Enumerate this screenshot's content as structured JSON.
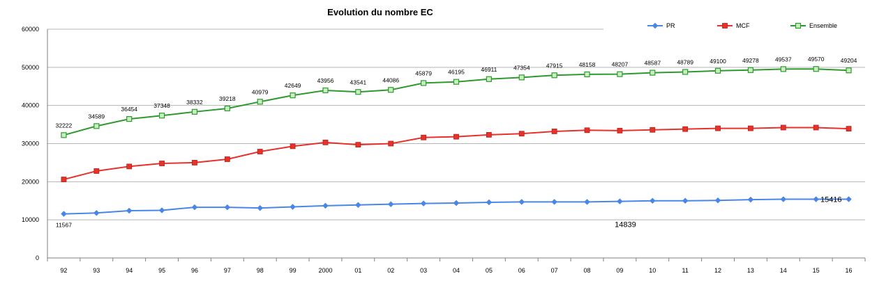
{
  "chart_data": {
    "type": "line",
    "title": "Evolution du nombre EC",
    "xlabel": "",
    "ylabel": "",
    "categories": [
      "92",
      "93",
      "94",
      "95",
      "96",
      "97",
      "98",
      "99",
      "2000",
      "01",
      "02",
      "03",
      "04",
      "05",
      "06",
      "07",
      "08",
      "09",
      "10",
      "11",
      "12",
      "13",
      "14",
      "15",
      "16"
    ],
    "ylim": [
      0,
      60000
    ],
    "yticks": [
      "0",
      "10000",
      "20000",
      "30000",
      "40000",
      "50000",
      "60000"
    ],
    "grid": true,
    "legend": "top-right",
    "series": [
      {
        "name": "PR",
        "color": "#4a86e8",
        "marker": "diamond",
        "values": [
          11567,
          11800,
          12400,
          12500,
          13300,
          13300,
          13100,
          13400,
          13700,
          13900,
          14100,
          14300,
          14400,
          14600,
          14700,
          14700,
          14700,
          14839,
          15000,
          15000,
          15100,
          15300,
          15400,
          15400,
          15416
        ]
      },
      {
        "name": "MCF",
        "color": "#e8312a",
        "marker": "square",
        "values": [
          20600,
          22800,
          24000,
          24800,
          25000,
          25900,
          27900,
          29300,
          30300,
          29700,
          30000,
          31600,
          31800,
          32300,
          32600,
          33200,
          33500,
          33400,
          33600,
          33800,
          34000,
          34000,
          34200,
          34200,
          33900
        ]
      },
      {
        "name": "Ensemble",
        "color": "#2e9a2e",
        "marker": "square-open",
        "values": [
          32222,
          34589,
          36454,
          37348,
          38332,
          39218,
          40979,
          42649,
          43956,
          43541,
          44086,
          45879,
          46195,
          46911,
          47354,
          47915,
          48158,
          48207,
          48587,
          48789,
          49100,
          49278,
          49537,
          49570,
          49204
        ]
      }
    ],
    "data_labels": {
      "Ensemble": [
        "32222",
        "34589",
        "36454",
        "37348",
        "38332",
        "39218",
        "40979",
        "42649",
        "43956",
        "43541",
        "44086",
        "45879",
        "46195",
        "46911",
        "47354",
        "47915",
        "48158",
        "48207",
        "48587",
        "48789",
        "49100",
        "49278",
        "49537",
        "49570",
        "49204"
      ],
      "PR": [
        {
          "index": 0,
          "text": "11567"
        },
        {
          "index": 17,
          "text": "14839"
        },
        {
          "index": 24,
          "text": "15416"
        }
      ]
    }
  }
}
